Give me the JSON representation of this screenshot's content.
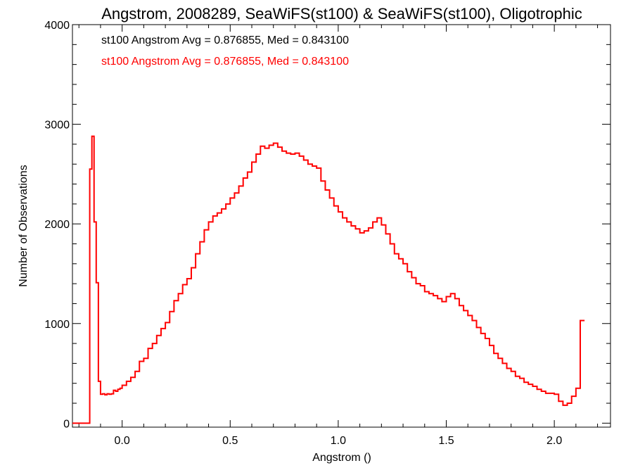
{
  "chart_data": {
    "type": "histogram-step",
    "title": "Angstrom, 2008289, SeaWiFS(st100) & SeaWiFS(st100), Oligotrophic",
    "xlabel": "Angstrom ()",
    "ylabel": "Number of Observations",
    "xlim": [
      -0.23,
      2.26
    ],
    "ylim": [
      -40,
      4000
    ],
    "xticks": [
      0.0,
      0.5,
      1.0,
      1.5,
      2.0
    ],
    "xtick_labels": [
      "0.0",
      "0.5",
      "1.0",
      "1.5",
      "2.0"
    ],
    "yticks": [
      0,
      1000,
      2000,
      3000,
      4000
    ],
    "ytick_labels": [
      "0",
      "1000",
      "2000",
      "3000",
      "4000"
    ],
    "annotations": [
      {
        "text": "st100 Angstrom Avg = 0.876855, Med = 0.843100",
        "color": "#000000"
      },
      {
        "text": "st100 Angstrom Avg = 0.876855, Med = 0.843100",
        "color": "#ff0000"
      }
    ],
    "series": [
      {
        "color": "#ff0000",
        "x": [
          -0.15,
          -0.14,
          -0.13,
          -0.12,
          -0.11,
          -0.1,
          -0.09,
          -0.08,
          -0.07,
          -0.06,
          -0.05,
          -0.04,
          -0.03,
          -0.02,
          -0.01,
          0.0,
          0.02,
          0.04,
          0.06,
          0.08,
          0.1,
          0.12,
          0.14,
          0.16,
          0.18,
          0.2,
          0.22,
          0.24,
          0.26,
          0.28,
          0.3,
          0.32,
          0.34,
          0.36,
          0.38,
          0.4,
          0.42,
          0.44,
          0.46,
          0.48,
          0.5,
          0.52,
          0.54,
          0.56,
          0.58,
          0.6,
          0.62,
          0.64,
          0.66,
          0.68,
          0.7,
          0.72,
          0.74,
          0.76,
          0.78,
          0.8,
          0.82,
          0.84,
          0.86,
          0.88,
          0.9,
          0.92,
          0.94,
          0.96,
          0.98,
          1.0,
          1.02,
          1.04,
          1.06,
          1.08,
          1.1,
          1.12,
          1.14,
          1.16,
          1.18,
          1.2,
          1.22,
          1.24,
          1.26,
          1.28,
          1.3,
          1.32,
          1.34,
          1.36,
          1.38,
          1.4,
          1.42,
          1.44,
          1.46,
          1.48,
          1.5,
          1.52,
          1.54,
          1.56,
          1.58,
          1.6,
          1.62,
          1.64,
          1.66,
          1.68,
          1.7,
          1.72,
          1.74,
          1.76,
          1.78,
          1.8,
          1.82,
          1.84,
          1.86,
          1.88,
          1.9,
          1.92,
          1.94,
          1.96,
          1.98,
          2.0,
          2.02,
          2.04,
          2.06,
          2.08,
          2.1,
          2.12,
          2.14
        ],
        "values": [
          2550,
          2880,
          2020,
          1410,
          420,
          290,
          295,
          285,
          295,
          290,
          295,
          330,
          320,
          340,
          350,
          380,
          420,
          460,
          520,
          620,
          650,
          750,
          800,
          880,
          950,
          1010,
          1120,
          1230,
          1300,
          1390,
          1450,
          1560,
          1700,
          1820,
          1940,
          2020,
          2080,
          2110,
          2150,
          2200,
          2260,
          2310,
          2380,
          2460,
          2520,
          2620,
          2700,
          2780,
          2760,
          2790,
          2810,
          2770,
          2730,
          2710,
          2700,
          2710,
          2680,
          2640,
          2600,
          2580,
          2560,
          2430,
          2340,
          2260,
          2180,
          2120,
          2060,
          2020,
          1980,
          1950,
          1910,
          1930,
          1960,
          2020,
          2060,
          1990,
          1900,
          1800,
          1700,
          1650,
          1600,
          1520,
          1460,
          1400,
          1380,
          1320,
          1300,
          1280,
          1250,
          1220,
          1270,
          1300,
          1250,
          1180,
          1130,
          1080,
          1030,
          960,
          900,
          850,
          780,
          700,
          650,
          600,
          550,
          520,
          470,
          450,
          410,
          390,
          370,
          340,
          320,
          300,
          300,
          290,
          220,
          180,
          200,
          270,
          350,
          1030
        ]
      }
    ]
  }
}
